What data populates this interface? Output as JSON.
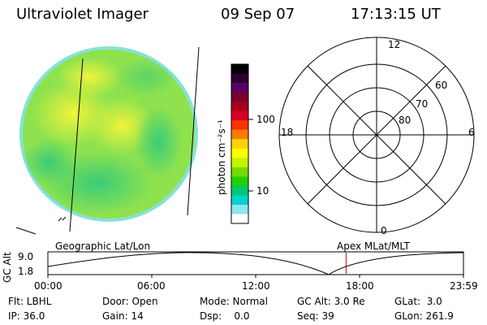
{
  "header": {
    "title": "Ultraviolet Imager",
    "date": "09 Sep 07",
    "time": "17:13:15 UT"
  },
  "colorbar": {
    "label": "photon cm⁻²s⁻¹",
    "ticks": [
      "100",
      "10"
    ],
    "scale": "log",
    "colors": [
      "#000000",
      "#2a0033",
      "#5a0062",
      "#7a0030",
      "#a8001c",
      "#d4002a",
      "#ff3000",
      "#ff7a00",
      "#ffd200",
      "#ffff00",
      "#c9f200",
      "#72dc00",
      "#22d200",
      "#00c870",
      "#00d2cc",
      "#8be6ef",
      "#ffffff"
    ]
  },
  "image": {
    "disk_colors": {
      "base": "#9ee64a",
      "bright": "#e8f53a",
      "dark": "#4ed27a",
      "edge": "#7de0d8"
    }
  },
  "polar_plot": {
    "mlt_labels": [
      "12",
      "18",
      "6",
      "0"
    ],
    "lat_labels": [
      "60",
      "70",
      "80"
    ]
  },
  "altitude_panel": {
    "ylabel": "GC Alt",
    "yticks": [
      "9.0",
      "1.8"
    ],
    "left_title": "Geographic Lat/Lon",
    "right_title": "Apex MLat/MLT",
    "xticks": [
      "00:00",
      "06:00",
      "12:00",
      "18:00",
      "23:59"
    ],
    "marker_time_hours": 17.22,
    "marker_color": "#cc0000"
  },
  "status": {
    "row1": [
      {
        "label": "Flt: LBHL"
      },
      {
        "label": "Door: Open"
      },
      {
        "label": "Mode: Normal"
      },
      {
        "label": "GC Alt: 3.0 Re"
      },
      {
        "label": "GLat:  3.0"
      }
    ],
    "row2": [
      {
        "label": "IP: 36.0"
      },
      {
        "label": "Gain: 14"
      },
      {
        "label": "Dsp:    0.0"
      },
      {
        "label": "Seq: 39"
      },
      {
        "label": "GLon: 261.9"
      }
    ]
  }
}
